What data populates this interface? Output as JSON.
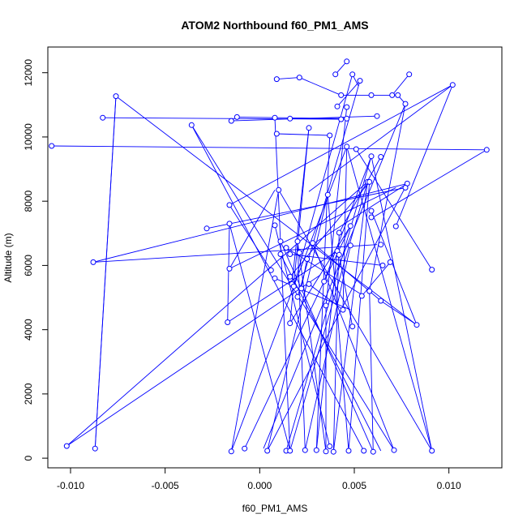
{
  "chart_data": {
    "type": "line",
    "title": "ATOM2 Northbound f60_PM1_AMS",
    "xlabel": "f60_PM1_AMS",
    "ylabel": "Altitude (m)",
    "xlim": [
      -0.0112,
      0.0128
    ],
    "ylim": [
      -300,
      12800
    ],
    "x_ticks": [
      -0.01,
      -0.005,
      0.0,
      0.005,
      0.01
    ],
    "x_tick_labels": [
      "-0.010",
      "-0.005",
      "0.000",
      "0.005",
      "0.010"
    ],
    "y_ticks": [
      0,
      2000,
      4000,
      6000,
      8000,
      10000,
      12000
    ],
    "y_tick_labels": [
      "0",
      "2000",
      "4000",
      "6000",
      "8000",
      "10000",
      "12000"
    ],
    "grid": false,
    "legend": "none",
    "series_color": "#0000ff",
    "marker": "open-circle",
    "points": [
      {
        "x": 0.0046,
        "y": 12350
      },
      {
        "x": 0.004,
        "y": 11950
      },
      {
        "x": 0.0049,
        "y": 11950
      },
      {
        "x": 0.0079,
        "y": 11950
      },
      {
        "x": 0.0021,
        "y": 11850
      },
      {
        "x": 0.0009,
        "y": 11800
      },
      {
        "x": 0.0053,
        "y": 11750
      },
      {
        "x": 0.0102,
        "y": 11620
      },
      {
        "x": 0.0043,
        "y": 11300
      },
      {
        "x": 0.007,
        "y": 11300
      },
      {
        "x": 0.0073,
        "y": 11300
      },
      {
        "x": 0.0059,
        "y": 11300
      },
      {
        "x": -0.0076,
        "y": 11270
      },
      {
        "x": 0.0077,
        "y": 11030
      },
      {
        "x": 0.0046,
        "y": 10930
      },
      {
        "x": 0.0041,
        "y": 10950
      },
      {
        "x": 0.0062,
        "y": 10650
      },
      {
        "x": -0.0012,
        "y": 10620
      },
      {
        "x": -0.0083,
        "y": 10600
      },
      {
        "x": 0.0008,
        "y": 10600
      },
      {
        "x": 0.0016,
        "y": 10570
      },
      {
        "x": 0.0046,
        "y": 10570
      },
      {
        "x": 0.0043,
        "y": 10550
      },
      {
        "x": -0.0015,
        "y": 10500
      },
      {
        "x": -0.0036,
        "y": 10370
      },
      {
        "x": 0.0026,
        "y": 10280
      },
      {
        "x": 0.0009,
        "y": 10100
      },
      {
        "x": 0.0037,
        "y": 10050
      },
      {
        "x": -0.011,
        "y": 9720
      },
      {
        "x": 0.0046,
        "y": 9700
      },
      {
        "x": 0.0051,
        "y": 9620
      },
      {
        "x": 0.012,
        "y": 9600
      },
      {
        "x": 0.0059,
        "y": 9400
      },
      {
        "x": 0.0064,
        "y": 9380
      },
      {
        "x": 0.0057,
        "y": 8600
      },
      {
        "x": 0.0058,
        "y": 8600
      },
      {
        "x": 0.0078,
        "y": 8550
      },
      {
        "x": 0.0077,
        "y": 8420
      },
      {
        "x": 0.001,
        "y": 8350
      },
      {
        "x": 0.0036,
        "y": 8200
      },
      {
        "x": -0.0016,
        "y": 7880
      },
      {
        "x": 0.0059,
        "y": 7700
      },
      {
        "x": 0.0059,
        "y": 7500
      },
      {
        "x": -0.0016,
        "y": 7300
      },
      {
        "x": 0.0008,
        "y": 7250
      },
      {
        "x": 0.0048,
        "y": 7230
      },
      {
        "x": 0.0072,
        "y": 7220
      },
      {
        "x": -0.0028,
        "y": 7150
      },
      {
        "x": 0.0042,
        "y": 7020
      },
      {
        "x": 0.0011,
        "y": 6750
      },
      {
        "x": 0.002,
        "y": 6750
      },
      {
        "x": 0.0028,
        "y": 6700
      },
      {
        "x": 0.0048,
        "y": 6620
      },
      {
        "x": 0.0064,
        "y": 6650
      },
      {
        "x": 0.0014,
        "y": 6550
      },
      {
        "x": 0.0041,
        "y": 6450
      },
      {
        "x": 0.0011,
        "y": 6350
      },
      {
        "x": 0.0016,
        "y": 6350
      },
      {
        "x": 0.0021,
        "y": 6400
      },
      {
        "x": 0.0042,
        "y": 6330
      },
      {
        "x": 0.0025,
        "y": 6200
      },
      {
        "x": -0.0088,
        "y": 6100
      },
      {
        "x": 0.0069,
        "y": 6100
      },
      {
        "x": 0.0065,
        "y": 6000
      },
      {
        "x": -0.0016,
        "y": 5900
      },
      {
        "x": 0.0091,
        "y": 5870
      },
      {
        "x": 0.0006,
        "y": 5850
      },
      {
        "x": 0.0016,
        "y": 5650
      },
      {
        "x": 0.0008,
        "y": 5600
      },
      {
        "x": 0.0034,
        "y": 5500
      },
      {
        "x": 0.0017,
        "y": 5420
      },
      {
        "x": 0.0026,
        "y": 5420
      },
      {
        "x": 0.0018,
        "y": 5350
      },
      {
        "x": 0.0022,
        "y": 5280
      },
      {
        "x": 0.0058,
        "y": 5200
      },
      {
        "x": 0.0054,
        "y": 5050
      },
      {
        "x": 0.002,
        "y": 5020
      },
      {
        "x": 0.0064,
        "y": 4900
      },
      {
        "x": 0.0035,
        "y": 4750
      },
      {
        "x": 0.0044,
        "y": 4620
      },
      {
        "x": -0.0017,
        "y": 4230
      },
      {
        "x": 0.0016,
        "y": 4200
      },
      {
        "x": 0.0083,
        "y": 4150
      },
      {
        "x": 0.0049,
        "y": 4100
      },
      {
        "x": -0.0102,
        "y": 380
      },
      {
        "x": 0.0037,
        "y": 370
      },
      {
        "x": -0.0087,
        "y": 300
      },
      {
        "x": -0.0008,
        "y": 300
      },
      {
        "x": 0.0024,
        "y": 250
      },
      {
        "x": 0.003,
        "y": 250
      },
      {
        "x": 0.0071,
        "y": 250
      },
      {
        "x": 0.0004,
        "y": 230
      },
      {
        "x": 0.0014,
        "y": 230
      },
      {
        "x": 0.0016,
        "y": 230
      },
      {
        "x": 0.0047,
        "y": 230
      },
      {
        "x": 0.0055,
        "y": 230
      },
      {
        "x": 0.0091,
        "y": 230
      },
      {
        "x": -0.0015,
        "y": 210
      },
      {
        "x": 0.0035,
        "y": 210
      },
      {
        "x": 0.0039,
        "y": 200
      },
      {
        "x": 0.006,
        "y": 200
      }
    ],
    "segments": [
      {
        "x1": 0.0046,
        "y1": 12350,
        "x2": 0.004,
        "y2": 11950
      },
      {
        "x1": 0.0049,
        "y1": 11950,
        "x2": 0.0052,
        "y2": 11600
      },
      {
        "x1": 0.0079,
        "y1": 11950,
        "x2": 0.007,
        "y2": 11300
      },
      {
        "x1": 0.0009,
        "y1": 11800,
        "x2": 0.0021,
        "y2": 11850
      },
      {
        "x1": 0.0021,
        "y1": 11850,
        "x2": 0.0043,
        "y2": 11300
      },
      {
        "x1": 0.0053,
        "y1": 11750,
        "x2": 0.0041,
        "y2": 10950
      },
      {
        "x1": 0.0102,
        "y1": 11620,
        "x2": 0.0026,
        "y2": 8300
      },
      {
        "x1": 0.0102,
        "y1": 11620,
        "x2": -0.0016,
        "y2": 7880
      },
      {
        "x1": 0.0043,
        "y1": 11300,
        "x2": 0.0072,
        "y2": 11300
      },
      {
        "x1": 0.0073,
        "y1": 11300,
        "x2": 0.0077,
        "y2": 11030
      },
      {
        "x1": 0.0077,
        "y1": 11030,
        "x2": 0.0002,
        "y2": 300
      },
      {
        "x1": -0.0076,
        "y1": 11270,
        "x2": 0.0083,
        "y2": 4150
      },
      {
        "x1": -0.0076,
        "y1": 11270,
        "x2": -0.0087,
        "y2": 300
      },
      {
        "x1": -0.0083,
        "y1": 10600,
        "x2": 0.0043,
        "y2": 10550
      },
      {
        "x1": -0.0012,
        "y1": 10620,
        "x2": 0.0046,
        "y2": 10570
      },
      {
        "x1": 0.0008,
        "y1": 10600,
        "x2": 0.0016,
        "y2": 230
      },
      {
        "x1": 0.0016,
        "y1": 10570,
        "x2": 0.0042,
        "y2": 10570
      },
      {
        "x1": -0.0015,
        "y1": 10500,
        "x2": 0.0062,
        "y2": 10650
      },
      {
        "x1": -0.0036,
        "y1": 10370,
        "x2": 0.0055,
        "y2": 230
      },
      {
        "x1": -0.0036,
        "y1": 10370,
        "x2": 0.0071,
        "y2": 250
      },
      {
        "x1": 0.0026,
        "y1": 10280,
        "x2": 0.0017,
        "y2": 5420
      },
      {
        "x1": 0.0009,
        "y1": 10100,
        "x2": 0.0037,
        "y2": 10050
      },
      {
        "x1": 0.0037,
        "y1": 10050,
        "x2": 0.003,
        "y2": 250
      },
      {
        "x1": -0.011,
        "y1": 9720,
        "x2": 0.012,
        "y2": 9600
      },
      {
        "x1": 0.012,
        "y1": 9600,
        "x2": 0.006,
        "y2": 7500
      },
      {
        "x1": 0.0046,
        "y1": 9700,
        "x2": -0.0015,
        "y2": 210
      },
      {
        "x1": 0.0051,
        "y1": 9620,
        "x2": 0.0091,
        "y2": 5870
      },
      {
        "x1": 0.0059,
        "y1": 9400,
        "x2": 0.0014,
        "y2": 230
      },
      {
        "x1": 0.0064,
        "y1": 9380,
        "x2": 0.0042,
        "y2": 7020
      },
      {
        "x1": 0.0057,
        "y1": 8600,
        "x2": 0.0039,
        "y2": 200
      },
      {
        "x1": 0.0058,
        "y1": 8600,
        "x2": 0.0047,
        "y2": 230
      },
      {
        "x1": 0.0078,
        "y1": 8550,
        "x2": 0.0021,
        "y2": 6400
      },
      {
        "x1": 0.0077,
        "y1": 8420,
        "x2": -0.0028,
        "y2": 7150
      },
      {
        "x1": 0.001,
        "y1": 8350,
        "x2": 0.0091,
        "y2": 230
      },
      {
        "x1": 0.0036,
        "y1": 8200,
        "x2": 0.0004,
        "y2": 230
      },
      {
        "x1": -0.0016,
        "y1": 7300,
        "x2": 0.0016,
        "y2": 230
      },
      {
        "x1": 0.0008,
        "y1": 7250,
        "x2": 0.0037,
        "y2": 370
      },
      {
        "x1": 0.0048,
        "y1": 7230,
        "x2": 0.0016,
        "y2": 4200
      },
      {
        "x1": 0.0072,
        "y1": 7220,
        "x2": 0.0102,
        "y2": 11620
      },
      {
        "x1": -0.0088,
        "y1": 6100,
        "x2": 0.0062,
        "y2": 6650
      },
      {
        "x1": -0.0088,
        "y1": 6100,
        "x2": 0.0078,
        "y2": 8550
      },
      {
        "x1": 0.0011,
        "y1": 6750,
        "x2": 0.006,
        "y2": 200
      },
      {
        "x1": 0.002,
        "y1": 6750,
        "x2": 0.0035,
        "y2": 210
      },
      {
        "x1": 0.0028,
        "y1": 6700,
        "x2": 0.0064,
        "y2": 4900
      },
      {
        "x1": 0.0048,
        "y1": 6620,
        "x2": 0.0024,
        "y2": 250
      },
      {
        "x1": 0.0014,
        "y1": 6550,
        "x2": 0.0055,
        "y2": 5050
      },
      {
        "x1": 0.0041,
        "y1": 6450,
        "x2": -0.0017,
        "y2": 4230
      },
      {
        "x1": 0.0011,
        "y1": 6350,
        "x2": 0.0064,
        "y2": 230
      },
      {
        "x1": 0.0016,
        "y1": 6350,
        "x2": 0.0065,
        "y2": 6000
      },
      {
        "x1": 0.0042,
        "y1": 6330,
        "x2": 0.0049,
        "y2": 4100
      },
      {
        "x1": 0.0025,
        "y1": 6200,
        "x2": 0.0022,
        "y2": 5280
      },
      {
        "x1": 0.0069,
        "y1": 6100,
        "x2": 0.0054,
        "y2": 5050
      },
      {
        "x1": -0.0016,
        "y1": 5900,
        "x2": 0.0008,
        "y2": 8350
      },
      {
        "x1": -0.0016,
        "y1": 5900,
        "x2": 0.0072,
        "y2": 8420
      },
      {
        "x1": 0.0006,
        "y1": 5850,
        "x2": -0.0016,
        "y2": 7880
      },
      {
        "x1": 0.0016,
        "y1": 5650,
        "x2": 0.0058,
        "y2": 8600
      },
      {
        "x1": 0.0008,
        "y1": 5600,
        "x2": 0.0048,
        "y2": 4620
      },
      {
        "x1": 0.0034,
        "y1": 5500,
        "x2": 0.0059,
        "y2": 9400
      },
      {
        "x1": 0.0026,
        "y1": 5420,
        "x2": 0.0044,
        "y2": 4620
      },
      {
        "x1": 0.0018,
        "y1": 5350,
        "x2": 0.0049,
        "y2": 11950
      },
      {
        "x1": 0.0058,
        "y1": 5200,
        "x2": 0.0077,
        "y2": 11030
      },
      {
        "x1": 0.002,
        "y1": 5020,
        "x2": 0.0053,
        "y2": 11750
      },
      {
        "x1": 0.0064,
        "y1": 4900,
        "x2": 0.0083,
        "y2": 4150
      },
      {
        "x1": 0.0035,
        "y1": 4750,
        "x2": 0.0046,
        "y2": 10930
      },
      {
        "x1": 0.0044,
        "y1": 4620,
        "x2": 0.0046,
        "y2": 9700
      },
      {
        "x1": -0.0017,
        "y1": 4230,
        "x2": -0.0016,
        "y2": 7300
      },
      {
        "x1": 0.0016,
        "y1": 4200,
        "x2": 0.0026,
        "y2": 10280
      },
      {
        "x1": 0.0083,
        "y1": 4150,
        "x2": 0.0059,
        "y2": 7700
      },
      {
        "x1": -0.0102,
        "y1": 380,
        "x2": 0.0057,
        "y2": 8600
      },
      {
        "x1": -0.0102,
        "y1": 380,
        "x2": 0.0032,
        "y2": 5700
      },
      {
        "x1": -0.0087,
        "y1": 300,
        "x2": -0.0076,
        "y2": 11270
      },
      {
        "x1": -0.0008,
        "y1": 300,
        "x2": 0.0048,
        "y2": 7230
      },
      {
        "x1": 0.0024,
        "y1": 250,
        "x2": 0.002,
        "y2": 6750
      },
      {
        "x1": 0.003,
        "y1": 250,
        "x2": 0.0041,
        "y2": 6450
      },
      {
        "x1": 0.0071,
        "y1": 250,
        "x2": 0.0028,
        "y2": 6700
      },
      {
        "x1": 0.0004,
        "y1": 230,
        "x2": 0.0078,
        "y2": 8550
      },
      {
        "x1": 0.0016,
        "y1": 230,
        "x2": 0.0057,
        "y2": 8600
      },
      {
        "x1": 0.0047,
        "y1": 230,
        "x2": 0.0036,
        "y2": 8200
      },
      {
        "x1": 0.0091,
        "y1": 230,
        "x2": 0.0046,
        "y2": 9700
      },
      {
        "x1": 0.0091,
        "y1": 230,
        "x2": 0.0059,
        "y2": 9400
      },
      {
        "x1": -0.0015,
        "y1": 210,
        "x2": 0.001,
        "y2": 8350
      },
      {
        "x1": 0.0035,
        "y1": 210,
        "x2": 0.0035,
        "y2": 4750
      },
      {
        "x1": 0.0039,
        "y1": 200,
        "x2": 0.0042,
        "y2": 7020
      },
      {
        "x1": 0.006,
        "y1": 200,
        "x2": 0.0058,
        "y2": 5200
      }
    ]
  }
}
